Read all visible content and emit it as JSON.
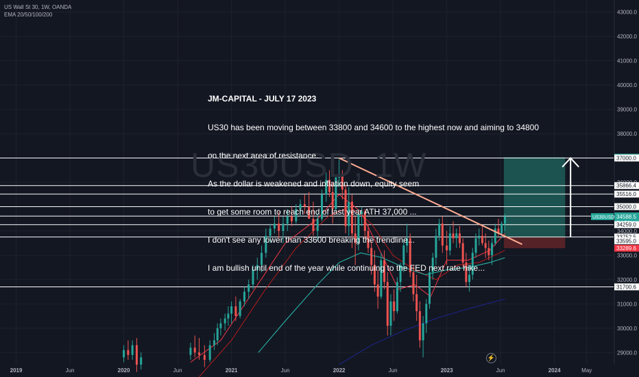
{
  "header": {
    "symbol_line": "US Wall St 30, 1W, OANDA",
    "indicator_line": "EMA 20/50/100/200"
  },
  "watermark": "US30USD, 1W",
  "annotation_lines": [
    "JM-CAPITAL - JULY 17 2023",
    "US30 has been moving between 33800 and 34600 to the highest now and aiming to 34800",
    "on the next area of resistance.",
    "As the dollar is weakened and inflation down, equity seem",
    "to get some room to reach end of last year ATH 37,000 ...",
    "I don't see any lower than 33600 breaking the trendline...",
    "I am bullish until end of the year while continuing to the FED next rate hike..."
  ],
  "colors": {
    "background": "#131722",
    "grid": "#1e222d",
    "up": "#26a69a",
    "down": "#ef5350",
    "ema20": "#f23645",
    "ema50": "#b71c1c",
    "ema100": "#26a69a",
    "ema200": "#1a237e",
    "trendline": "#ffab91",
    "level": "#ffffff",
    "profit_zone": "#1e5e58",
    "loss_zone": "#5c2428",
    "price_tag": "#26a69a",
    "stop_tag": "#f23645"
  },
  "chart_data": {
    "type": "candlestick",
    "symbol": "US30USD",
    "interval": "1W",
    "ylim": [
      28500,
      43500
    ],
    "y_ticks": [
      29000,
      30000,
      31000,
      32000,
      33000,
      34000,
      35000,
      36000,
      37000,
      38000,
      39000,
      40000,
      41000,
      42000,
      43000
    ],
    "y_tick_labels": [
      "29000.0",
      "30000.0",
      "31000.0",
      "32000.0",
      "33000.0",
      "34000.0",
      "35000.0",
      "36000.0",
      "37000.0",
      "38000.0",
      "39000.0",
      "40000.0",
      "41000.0",
      "42000.0",
      "43000.0"
    ],
    "x_ticks": [
      {
        "t": 2019.0,
        "label": "2019"
      },
      {
        "t": 2019.5,
        "label": "Jun"
      },
      {
        "t": 2020.0,
        "label": "2020"
      },
      {
        "t": 2020.5,
        "label": "Jun"
      },
      {
        "t": 2021.0,
        "label": "2021"
      },
      {
        "t": 2021.5,
        "label": "Jun"
      },
      {
        "t": 2022.0,
        "label": "2022"
      },
      {
        "t": 2022.5,
        "label": "Jun"
      },
      {
        "t": 2023.0,
        "label": "2023"
      },
      {
        "t": 2023.5,
        "label": "Jun"
      },
      {
        "t": 2024.0,
        "label": "2024"
      },
      {
        "t": 2024.3,
        "label": "May"
      }
    ],
    "xlim": [
      2018.85,
      2024.55
    ],
    "horizontal_levels": [
      37000,
      35866.4,
      35516,
      35000,
      34613,
      34259,
      33752.5,
      31700.6
    ],
    "price_tags": [
      {
        "value": 37033.2,
        "label": "37033.2",
        "kind": "target"
      },
      {
        "value": 37000,
        "label": "37000.0",
        "kind": "level"
      },
      {
        "value": 35866.4,
        "label": "35866.4",
        "kind": "level"
      },
      {
        "value": 35516,
        "label": "35516.0",
        "kind": "level"
      },
      {
        "value": 35000,
        "label": "35000.0",
        "kind": "level"
      },
      {
        "value": 34613,
        "label": "34613.0",
        "kind": "level"
      },
      {
        "value": 34588.5,
        "label": "34588.5",
        "kind": "current"
      },
      {
        "value": 34259,
        "label": "34259.0",
        "kind": "level"
      },
      {
        "value": 33752.5,
        "label": "33752.5",
        "kind": "level"
      },
      {
        "value": 33595,
        "label": "33595.0",
        "kind": "level"
      },
      {
        "value": 33289.6,
        "label": "33289.6",
        "kind": "stop"
      },
      {
        "value": 31700.6,
        "label": "31700.6",
        "kind": "level"
      }
    ],
    "current_price_label": {
      "symbol": "US30USD",
      "countdown": "3d 21h"
    },
    "trendline": [
      {
        "t": 2022.0,
        "v": 37000
      },
      {
        "t": 2023.7,
        "v": 33450
      }
    ],
    "position": {
      "entry": 33752.5,
      "target": 37033.2,
      "stop": 33289.6,
      "t_start": 2023.53,
      "t_end": 2024.1
    },
    "arrow": {
      "t": 2024.15,
      "from": 33752.5,
      "to": 37000
    },
    "candles": [
      [
        2020.0,
        28800,
        29300,
        28600,
        29100
      ],
      [
        2020.04,
        29100,
        29500,
        28700,
        28900
      ],
      [
        2020.08,
        28900,
        29500,
        28700,
        29300
      ],
      [
        2020.12,
        29300,
        29600,
        28200,
        28500
      ],
      [
        2020.16,
        28500,
        29000,
        28300,
        28800
      ],
      [
        2020.62,
        28900,
        29400,
        28700,
        29200
      ],
      [
        2020.66,
        29200,
        29700,
        28800,
        29000
      ],
      [
        2020.7,
        29000,
        29600,
        28700,
        28900
      ],
      [
        2020.75,
        28900,
        29300,
        28400,
        28700
      ],
      [
        2020.8,
        28700,
        29500,
        28600,
        29300
      ],
      [
        2020.84,
        29300,
        29800,
        29100,
        29500
      ],
      [
        2020.87,
        29500,
        30200,
        29300,
        30000
      ],
      [
        2020.9,
        30000,
        30400,
        29700,
        30200
      ],
      [
        2020.94,
        30200,
        30600,
        29900,
        30400
      ],
      [
        2020.97,
        30400,
        30900,
        30100,
        30600
      ],
      [
        2021.0,
        30600,
        31100,
        30200,
        30900
      ],
      [
        2021.04,
        30900,
        31300,
        30300,
        30500
      ],
      [
        2021.08,
        30500,
        31200,
        30400,
        31100
      ],
      [
        2021.12,
        31100,
        31700,
        30900,
        31500
      ],
      [
        2021.16,
        31500,
        32000,
        31200,
        31800
      ],
      [
        2021.2,
        31800,
        32600,
        31600,
        32400
      ],
      [
        2021.24,
        32400,
        32900,
        32000,
        32600
      ],
      [
        2021.28,
        32600,
        33400,
        32300,
        33100
      ],
      [
        2021.32,
        33100,
        34100,
        32900,
        33800
      ],
      [
        2021.36,
        33800,
        34300,
        33500,
        34100
      ],
      [
        2021.4,
        34100,
        34600,
        33900,
        34300
      ],
      [
        2021.44,
        34300,
        34800,
        33700,
        34000
      ],
      [
        2021.48,
        34000,
        34600,
        33500,
        34300
      ],
      [
        2021.52,
        34300,
        34900,
        34000,
        34600
      ],
      [
        2021.56,
        34600,
        35000,
        34200,
        34400
      ],
      [
        2021.6,
        34400,
        35100,
        34300,
        34900
      ],
      [
        2021.64,
        34900,
        35300,
        34600,
        35100
      ],
      [
        2021.68,
        35100,
        35500,
        34700,
        35000
      ],
      [
        2021.72,
        35000,
        35600,
        34600,
        34500
      ],
      [
        2021.76,
        34500,
        35200,
        33800,
        34000
      ],
      [
        2021.8,
        34000,
        34700,
        33600,
        34500
      ],
      [
        2021.84,
        34500,
        35700,
        34400,
        35500
      ],
      [
        2021.88,
        35500,
        36400,
        35200,
        36100
      ],
      [
        2021.91,
        36100,
        36500,
        35400,
        35600
      ],
      [
        2021.94,
        35600,
        36000,
        34300,
        34900
      ],
      [
        2021.97,
        34900,
        36300,
        34800,
        36200
      ],
      [
        2022.0,
        36200,
        36950,
        35800,
        36300
      ],
      [
        2022.03,
        36300,
        36500,
        35300,
        35700
      ],
      [
        2022.06,
        35700,
        35900,
        33900,
        34200
      ],
      [
        2022.09,
        34200,
        35800,
        33800,
        35200
      ],
      [
        2022.12,
        35200,
        35500,
        33300,
        33900
      ],
      [
        2022.15,
        33900,
        34600,
        32600,
        33500
      ],
      [
        2022.18,
        33500,
        34900,
        33200,
        34700
      ],
      [
        2022.21,
        34700,
        35000,
        34200,
        34800
      ],
      [
        2022.24,
        34800,
        34900,
        33700,
        34000
      ],
      [
        2022.27,
        34000,
        34300,
        33100,
        33300
      ],
      [
        2022.3,
        33300,
        33600,
        32200,
        32600
      ],
      [
        2022.33,
        32600,
        33200,
        31500,
        31800
      ],
      [
        2022.36,
        31800,
        32400,
        30800,
        31300
      ],
      [
        2022.39,
        31300,
        33100,
        31200,
        32800
      ],
      [
        2022.42,
        32800,
        33200,
        31600,
        31900
      ],
      [
        2022.45,
        31900,
        32300,
        29700,
        30100
      ],
      [
        2022.48,
        30100,
        31400,
        29700,
        31100
      ],
      [
        2022.51,
        31100,
        31600,
        30300,
        30700
      ],
      [
        2022.54,
        30700,
        32100,
        30600,
        31900
      ],
      [
        2022.57,
        31900,
        32700,
        31500,
        32600
      ],
      [
        2022.6,
        32600,
        33600,
        32300,
        33400
      ],
      [
        2022.63,
        33400,
        34300,
        33100,
        33700
      ],
      [
        2022.66,
        33700,
        33900,
        32100,
        32300
      ],
      [
        2022.69,
        32300,
        32600,
        31100,
        31400
      ],
      [
        2022.72,
        31400,
        32200,
        30300,
        30700
      ],
      [
        2022.75,
        30700,
        31100,
        29200,
        29500
      ],
      [
        2022.78,
        29500,
        30500,
        28800,
        30200
      ],
      [
        2022.81,
        30200,
        31200,
        29800,
        31000
      ],
      [
        2022.84,
        31000,
        32500,
        30800,
        32300
      ],
      [
        2022.87,
        32300,
        33100,
        32000,
        32900
      ],
      [
        2022.9,
        32900,
        34100,
        32600,
        33800
      ],
      [
        2022.93,
        33800,
        34500,
        33600,
        34300
      ],
      [
        2022.96,
        34300,
        34600,
        33100,
        33400
      ],
      [
        2023.0,
        33400,
        34000,
        32600,
        33200
      ],
      [
        2023.03,
        33200,
        34200,
        33000,
        33900
      ],
      [
        2023.06,
        33900,
        34400,
        33500,
        33700
      ],
      [
        2023.09,
        33700,
        34100,
        33300,
        33900
      ],
      [
        2023.12,
        33900,
        34200,
        33300,
        33500
      ],
      [
        2023.15,
        33500,
        33700,
        32500,
        32700
      ],
      [
        2023.18,
        32700,
        33100,
        31700,
        31900
      ],
      [
        2023.21,
        31900,
        32600,
        31500,
        32200
      ],
      [
        2023.24,
        32200,
        33300,
        32000,
        33100
      ],
      [
        2023.27,
        33100,
        33900,
        32900,
        33700
      ],
      [
        2023.3,
        33700,
        34100,
        33400,
        33800
      ],
      [
        2023.33,
        33800,
        34200,
        33400,
        33500
      ],
      [
        2023.36,
        33500,
        33900,
        32900,
        33300
      ],
      [
        2023.39,
        33300,
        33600,
        32800,
        33000
      ],
      [
        2023.42,
        33000,
        33700,
        32600,
        33500
      ],
      [
        2023.45,
        33500,
        34300,
        33400,
        34100
      ],
      [
        2023.48,
        34100,
        34500,
        33800,
        33900
      ],
      [
        2023.51,
        33900,
        34400,
        33700,
        34300
      ],
      [
        2023.54,
        34300,
        34700,
        34000,
        34600
      ]
    ],
    "ema_series": [
      {
        "name": "EMA 20",
        "points": [
          [
            2020.62,
            28600
          ],
          [
            2020.9,
            29500
          ],
          [
            2021.2,
            31500
          ],
          [
            2021.5,
            33500
          ],
          [
            2021.8,
            34500
          ],
          [
            2022.0,
            35500
          ],
          [
            2022.2,
            34800
          ],
          [
            2022.4,
            33000
          ],
          [
            2022.55,
            31600
          ],
          [
            2022.7,
            31800
          ],
          [
            2022.85,
            31300
          ],
          [
            2023.0,
            32800
          ],
          [
            2023.2,
            32800
          ],
          [
            2023.4,
            33200
          ],
          [
            2023.54,
            33900
          ]
        ]
      },
      {
        "name": "EMA 50",
        "points": [
          [
            2020.7,
            28000
          ],
          [
            2021.0,
            29500
          ],
          [
            2021.3,
            31500
          ],
          [
            2021.6,
            33300
          ],
          [
            2021.9,
            34600
          ],
          [
            2022.1,
            35000
          ],
          [
            2022.3,
            34300
          ],
          [
            2022.5,
            33000
          ],
          [
            2022.7,
            32400
          ],
          [
            2022.9,
            32000
          ],
          [
            2023.1,
            32600
          ],
          [
            2023.3,
            32700
          ],
          [
            2023.54,
            33200
          ]
        ]
      },
      {
        "name": "EMA 100",
        "points": [
          [
            2021.25,
            29000
          ],
          [
            2021.5,
            30300
          ],
          [
            2021.8,
            31800
          ],
          [
            2022.0,
            32700
          ],
          [
            2022.2,
            33100
          ],
          [
            2022.4,
            32900
          ],
          [
            2022.6,
            32500
          ],
          [
            2022.8,
            32200
          ],
          [
            2023.0,
            32400
          ],
          [
            2023.2,
            32500
          ],
          [
            2023.4,
            32700
          ],
          [
            2023.54,
            32900
          ]
        ]
      },
      {
        "name": "EMA 200",
        "points": [
          [
            2022.0,
            28500
          ],
          [
            2022.3,
            29300
          ],
          [
            2022.6,
            29900
          ],
          [
            2022.9,
            30400
          ],
          [
            2023.2,
            30800
          ],
          [
            2023.54,
            31200
          ]
        ]
      }
    ]
  }
}
